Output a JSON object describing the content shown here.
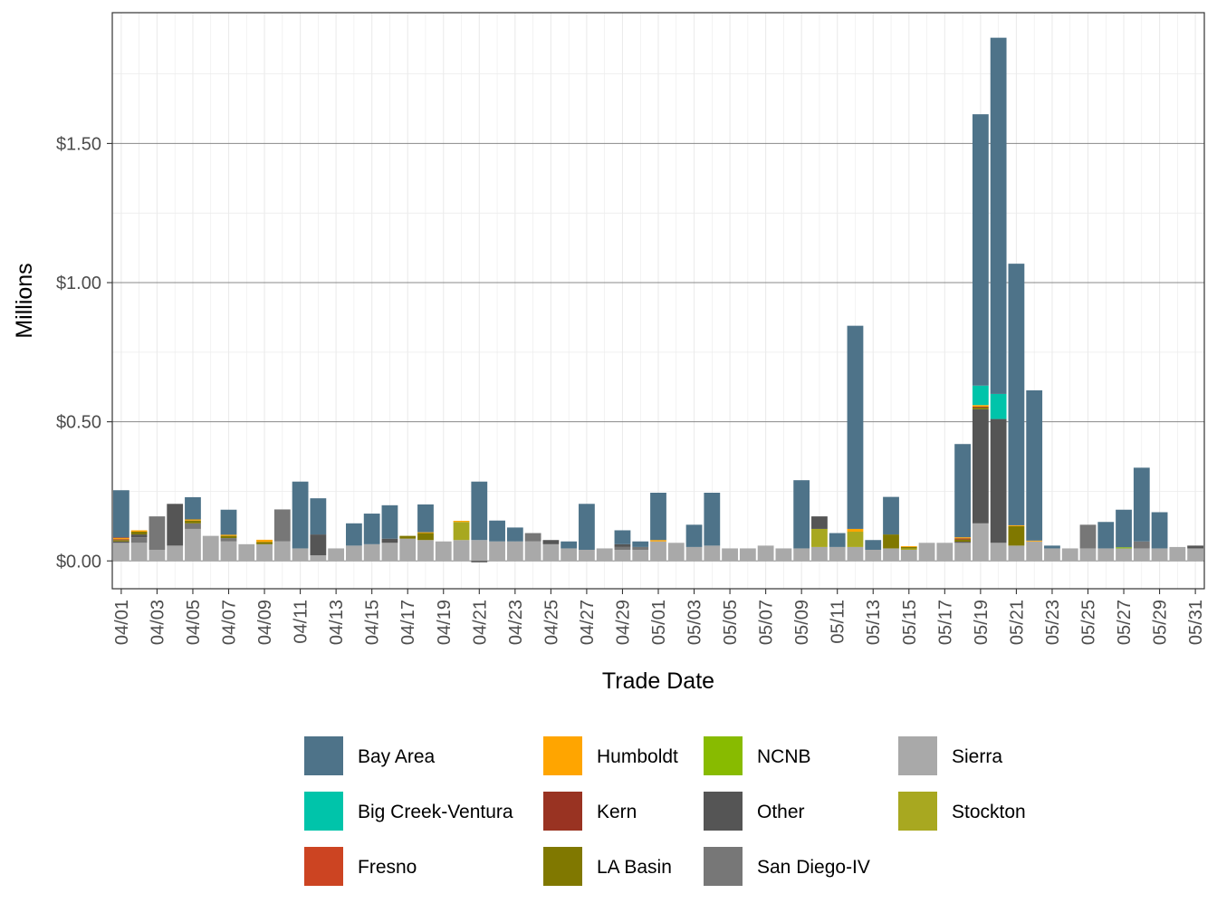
{
  "chart_data": {
    "type": "bar",
    "stacked": true,
    "xlabel": "Trade Date",
    "ylabel": "Millions",
    "ylim": [
      -0.1,
      1.97
    ],
    "y_ticks": [
      0,
      0.5,
      1.0,
      1.5
    ],
    "y_tick_labels": [
      "$0.00",
      "$0.50",
      "$1.00",
      "$1.50"
    ],
    "grid": true,
    "legend_position": "bottom",
    "categories": [
      "04/01",
      "04/02",
      "04/03",
      "04/04",
      "04/05",
      "04/06",
      "04/07",
      "04/08",
      "04/09",
      "04/10",
      "04/11",
      "04/12",
      "04/13",
      "04/14",
      "04/15",
      "04/16",
      "04/17",
      "04/18",
      "04/19",
      "04/20",
      "04/21",
      "04/22",
      "04/23",
      "04/24",
      "04/25",
      "04/26",
      "04/27",
      "04/28",
      "04/29",
      "04/30",
      "05/01",
      "05/02",
      "05/03",
      "05/04",
      "05/05",
      "05/06",
      "05/07",
      "05/08",
      "05/09",
      "05/10",
      "05/11",
      "05/12",
      "05/13",
      "05/14",
      "05/15",
      "05/16",
      "05/17",
      "05/18",
      "05/19",
      "05/20",
      "05/21",
      "05/22",
      "05/23",
      "05/24",
      "05/25",
      "05/26",
      "05/27",
      "05/28",
      "05/29",
      "05/30",
      "05/31"
    ],
    "x_tick_labels": [
      "04/01",
      "04/03",
      "04/05",
      "04/07",
      "04/09",
      "04/11",
      "04/13",
      "04/15",
      "04/17",
      "04/19",
      "04/21",
      "04/23",
      "04/25",
      "04/27",
      "04/29",
      "05/01",
      "05/03",
      "05/05",
      "05/07",
      "05/09",
      "05/11",
      "05/13",
      "05/15",
      "05/17",
      "05/19",
      "05/21",
      "05/23",
      "05/25",
      "05/27",
      "05/29",
      "05/31"
    ],
    "stack_order": [
      "Sierra",
      "Stockton",
      "San Diego-IV",
      "Other",
      "NCNB",
      "LA Basin",
      "Kern",
      "Humboldt",
      "Fresno",
      "Big Creek-Ventura",
      "Bay Area"
    ],
    "series": [
      {
        "name": "Bay Area",
        "color": "#4e7389",
        "values": [
          0.17,
          0,
          0,
          0,
          0.08,
          0,
          0.09,
          0,
          0,
          0,
          0.24,
          0.13,
          0,
          0.08,
          0.11,
          0.12,
          0,
          0.1,
          0,
          0,
          0.21,
          0.075,
          0.05,
          0,
          0,
          0.025,
          0.165,
          0,
          0.05,
          0.02,
          0.17,
          0,
          0.08,
          0.19,
          0,
          0,
          0,
          0,
          0.245,
          0,
          0.05,
          0.73,
          0.035,
          0.135,
          0,
          0,
          0,
          0.335,
          0.975,
          1.28,
          0.94,
          0.54,
          0.01,
          0,
          0,
          0.095,
          0.135,
          0.265,
          0.13,
          0,
          0
        ]
      },
      {
        "name": "Big Creek-Ventura",
        "color": "#00c4aa",
        "values": [
          0,
          0,
          0,
          0,
          0,
          0,
          0,
          0,
          0,
          0,
          0,
          0,
          0,
          0,
          0,
          0,
          0,
          0,
          0,
          0,
          0,
          0,
          0,
          0,
          0,
          0,
          0,
          0,
          0,
          0,
          0,
          0,
          0,
          0,
          0,
          0,
          0,
          0,
          0,
          0,
          0,
          0,
          0,
          0,
          0,
          0,
          0,
          0,
          0.07,
          0.09,
          0,
          0,
          0,
          0,
          0,
          0,
          0,
          0,
          0,
          0,
          0
        ]
      },
      {
        "name": "Fresno",
        "color": "#cc4422",
        "values": [
          0.002,
          0,
          0,
          0,
          0,
          0,
          0,
          0,
          0,
          0,
          0,
          0,
          0,
          0,
          0,
          0,
          0,
          0,
          0,
          0,
          0,
          0,
          0,
          0,
          0,
          0,
          0,
          0,
          0,
          0,
          0,
          0,
          0,
          0,
          0,
          0,
          0,
          0,
          0,
          0,
          0,
          0,
          0,
          0,
          0,
          0,
          0,
          0,
          0,
          0,
          0,
          0,
          0,
          0,
          0,
          0,
          0,
          0,
          0,
          0,
          0
        ]
      },
      {
        "name": "Humboldt",
        "color": "#ffa500",
        "values": [
          0.004,
          0.005,
          0,
          0,
          0.004,
          0,
          0.004,
          0,
          0.008,
          0,
          0,
          0,
          0,
          0,
          0,
          0,
          0,
          0.003,
          0,
          0.004,
          0,
          0,
          0,
          0,
          0,
          0,
          0,
          0,
          0,
          0,
          0.005,
          0,
          0,
          0,
          0,
          0,
          0,
          0,
          0,
          0,
          0,
          0.01,
          0,
          0,
          0.003,
          0,
          0,
          0.004,
          0.006,
          0,
          0.003,
          0.003,
          0,
          0,
          0,
          0,
          0,
          0,
          0,
          0,
          0
        ]
      },
      {
        "name": "Kern",
        "color": "#993322",
        "values": [
          0.003,
          0,
          0,
          0,
          0,
          0,
          0,
          0,
          0,
          0,
          0,
          0,
          0,
          0,
          0,
          0,
          0,
          0,
          0,
          0,
          0,
          0,
          0,
          0,
          0,
          0,
          0,
          0,
          0,
          0,
          0,
          0,
          0,
          0,
          0,
          0,
          0,
          0,
          0,
          0,
          0,
          0,
          0,
          0,
          0,
          0,
          0,
          0.004,
          0.003,
          0,
          0,
          0,
          0,
          0,
          0,
          0,
          0,
          0,
          0,
          0,
          0
        ]
      },
      {
        "name": "LA Basin",
        "color": "#807800",
        "values": [
          0.005,
          0.01,
          0,
          0,
          0.01,
          0,
          0.008,
          0,
          0.008,
          0,
          0,
          0,
          0,
          0,
          0,
          0,
          0.01,
          0.025,
          0,
          0,
          0,
          0,
          0,
          0,
          0,
          0,
          0,
          0,
          0,
          0,
          0,
          0,
          0,
          0,
          0,
          0,
          0,
          0,
          0,
          0,
          0,
          0,
          0,
          0.05,
          0.005,
          0,
          0,
          0.008,
          0.006,
          0,
          0.07,
          0,
          0,
          0,
          0,
          0,
          0,
          0,
          0,
          0,
          0
        ]
      },
      {
        "name": "NCNB",
        "color": "#88bb00",
        "values": [
          0,
          0,
          0,
          0,
          0,
          0,
          0,
          0,
          0,
          0,
          0,
          0,
          0,
          0,
          0,
          0,
          0,
          0,
          0,
          0,
          0,
          0,
          0,
          0,
          0,
          0,
          0,
          0,
          0,
          0,
          0,
          0,
          0,
          0,
          0,
          0,
          0,
          0,
          0,
          0,
          0,
          0,
          0,
          0,
          0,
          0,
          0,
          0,
          0,
          0,
          0,
          0,
          0,
          0,
          0,
          0,
          0.004,
          0,
          0,
          0,
          0
        ]
      },
      {
        "name": "Other",
        "color": "#555555",
        "values": [
          0.005,
          0.01,
          0,
          0.15,
          0,
          0,
          0,
          0,
          0,
          0,
          0,
          0.075,
          0,
          0,
          0,
          0.015,
          0,
          0,
          0,
          0,
          -0.005,
          0,
          0,
          0,
          0.015,
          0,
          0,
          0,
          0.01,
          0,
          0,
          0,
          0,
          0,
          0,
          0,
          0,
          0,
          0,
          0.045,
          0,
          0,
          0,
          0,
          0,
          0,
          0,
          0.004,
          0.41,
          0.445,
          0,
          0,
          0,
          0,
          0,
          0,
          0,
          0,
          0,
          0,
          0.01
        ]
      },
      {
        "name": "San Diego-IV",
        "color": "#777777",
        "values": [
          0,
          0.02,
          0.12,
          0,
          0.02,
          0,
          0.012,
          0,
          0,
          0.115,
          0,
          0,
          0,
          0,
          0,
          0,
          0,
          0,
          0,
          0,
          0,
          0,
          0,
          0.03,
          0,
          0,
          0,
          0,
          0.01,
          0.01,
          0,
          0,
          0,
          0,
          0,
          0,
          0,
          0,
          0,
          0,
          0,
          0,
          0,
          0,
          0,
          0,
          0,
          0,
          0,
          0,
          0,
          0,
          0,
          0,
          0.085,
          0,
          0,
          0.025,
          0,
          0,
          0
        ]
      },
      {
        "name": "Sierra",
        "color": "#a9a9a9",
        "values": [
          0.065,
          0.065,
          0.04,
          0.055,
          0.115,
          0.09,
          0.07,
          0.06,
          0.06,
          0.07,
          0.045,
          0.02,
          0.045,
          0.055,
          0.06,
          0.065,
          0.08,
          0.075,
          0.07,
          0.075,
          0.075,
          0.07,
          0.07,
          0.07,
          0.06,
          0.045,
          0.04,
          0.045,
          0.04,
          0.04,
          0.07,
          0.065,
          0.05,
          0.055,
          0.045,
          0.045,
          0.055,
          0.045,
          0.045,
          0.05,
          0.05,
          0.05,
          0.04,
          0.045,
          0.04,
          0.065,
          0.065,
          0.065,
          0.135,
          0.065,
          0.055,
          0.07,
          0.045,
          0.045,
          0.045,
          0.045,
          0.045,
          0.045,
          0.045,
          0.05,
          0.045
        ]
      },
      {
        "name": "Stockton",
        "color": "#a8a820",
        "values": [
          0,
          0,
          0,
          0,
          0,
          0,
          0,
          0,
          0,
          0,
          0,
          0,
          0,
          0,
          0,
          0,
          0,
          0,
          0,
          0.065,
          0,
          0,
          0,
          0,
          0,
          0,
          0,
          0,
          0,
          0,
          0,
          0,
          0,
          0,
          0,
          0,
          0,
          0,
          0,
          0.065,
          0,
          0.055,
          0,
          0,
          0.005,
          0,
          0,
          0,
          0,
          0,
          0,
          0,
          0,
          0,
          0,
          0,
          0,
          0,
          0,
          0,
          0
        ]
      }
    ]
  }
}
